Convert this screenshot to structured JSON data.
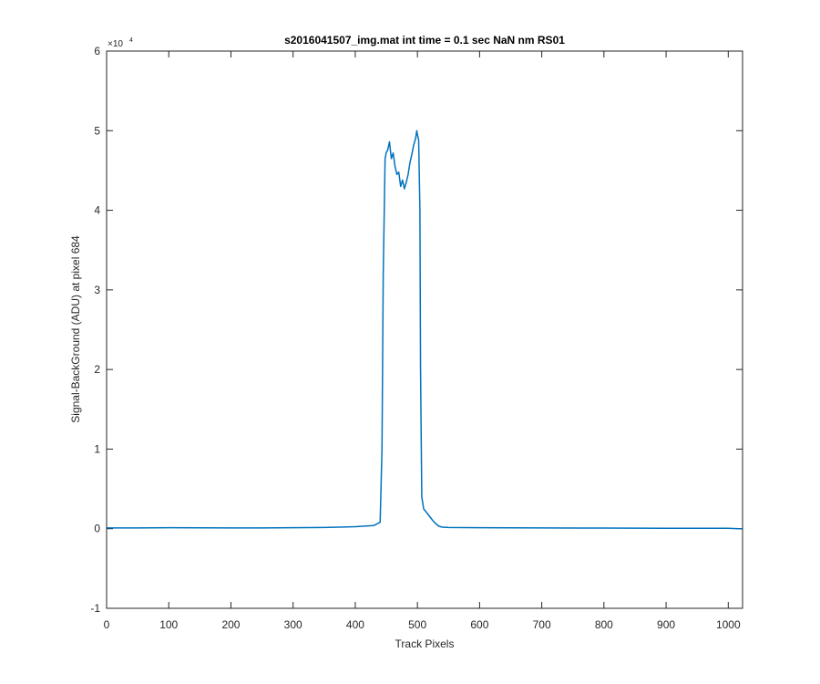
{
  "chart_data": {
    "type": "line",
    "title": "s2016041507_img.mat int time = 0.1 sec  NaN nm RS01",
    "xlabel": "Track Pixels",
    "ylabel": "Signal-BackGround (ADU) at pixel 684",
    "y_exponent_base": "×10",
    "y_exponent_power": "4",
    "xlim": [
      0,
      1023
    ],
    "ylim": [
      -10000,
      60000
    ],
    "x_ticks": [
      "0",
      "100",
      "200",
      "300",
      "400",
      "500",
      "600",
      "700",
      "800",
      "900",
      "1000"
    ],
    "y_ticks": [
      "-1",
      "0",
      "1",
      "2",
      "3",
      "4",
      "5",
      "6"
    ],
    "grid": false,
    "color": "#0072BD",
    "series": [
      {
        "x": [
          0,
          50,
          100,
          150,
          200,
          250,
          300,
          350,
          400,
          430,
          440,
          443,
          445,
          448,
          450,
          452,
          455,
          458,
          461,
          464,
          467,
          470,
          473,
          476,
          479,
          482,
          485,
          488,
          491,
          494,
          497,
          499,
          500,
          502,
          504,
          505,
          507,
          510,
          515,
          520,
          525,
          530,
          535,
          540,
          550,
          600,
          700,
          800,
          900,
          1000,
          1017,
          1023
        ],
        "y": [
          100,
          100,
          120,
          110,
          90,
          100,
          130,
          160,
          250,
          400,
          800,
          10000,
          32000,
          46500,
          47300,
          47500,
          48600,
          46500,
          47200,
          45500,
          44500,
          44800,
          43000,
          43800,
          42700,
          43500,
          44500,
          46000,
          47000,
          48200,
          49000,
          50000,
          49500,
          48800,
          40000,
          20000,
          4000,
          2500,
          2000,
          1500,
          1000,
          600,
          300,
          200,
          150,
          130,
          100,
          80,
          50,
          50,
          0,
          0
        ]
      }
    ]
  }
}
